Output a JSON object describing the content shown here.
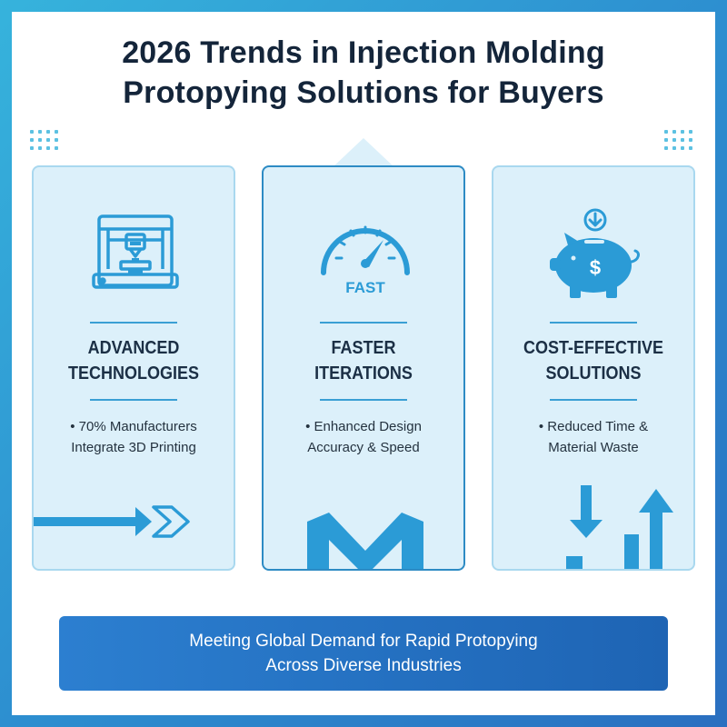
{
  "title": {
    "line1": "2026 Trends in Injection Molding",
    "line2": "Protopying Solutions for Buyers"
  },
  "cards": [
    {
      "icon": "3d-printer-icon",
      "heading_line1": "ADVANCED",
      "heading_line2": "TECHNOLOGIES",
      "bullet_line1": "• 70% Manufacturers",
      "bullet_line2": "Integrate 3D Printing",
      "decoration": "arrow-right-icon"
    },
    {
      "icon": "speedometer-icon",
      "icon_label": "FAST",
      "heading_line1": "FASTER",
      "heading_line2": "ITERATIONS",
      "bullet_line1": "• Enhanced Design",
      "bullet_line2": "Accuracy & Speed",
      "decoration": "m-shape-graphic"
    },
    {
      "icon": "piggy-bank-dollar-icon",
      "heading_line1": "COST-EFFECTIVE",
      "heading_line2": "SOLUTIONS",
      "bullet_line1": "• Reduced Time &",
      "bullet_line2": "Material Waste",
      "decoration": "down-up-arrows-icon"
    }
  ],
  "footer": {
    "line1": "Meeting Global Demand for Rapid Protopying",
    "line2": "Across Diverse Industries"
  },
  "colors": {
    "accent": "#2d8fd0",
    "card_bg": "#dcf0fa",
    "footer_bg": "#1e64b4",
    "title": "#14253a"
  }
}
